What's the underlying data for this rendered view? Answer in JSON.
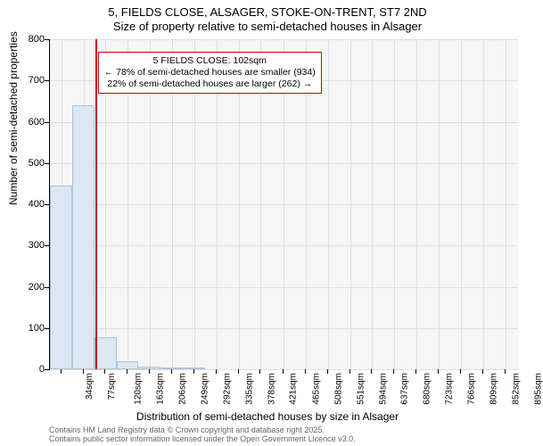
{
  "title": {
    "line1": "5, FIELDS CLOSE, ALSAGER, STOKE-ON-TRENT, ST7 2ND",
    "line2": "Size of property relative to semi-detached houses in Alsager"
  },
  "chart": {
    "type": "histogram",
    "background_color": "#f6f6f6",
    "grid_color": "#dddddd",
    "bar_fill": "#dbe7f3",
    "bar_border": "#b0c4d8",
    "marker_color": "#cc0000",
    "x_min": 12,
    "x_max": 920,
    "y_min": 0,
    "y_max": 800,
    "y_ticks": [
      0,
      100,
      200,
      300,
      400,
      500,
      600,
      700,
      800
    ],
    "x_tick_labels": [
      "34sqm",
      "77sqm",
      "120sqm",
      "163sqm",
      "206sqm",
      "249sqm",
      "292sqm",
      "335sqm",
      "378sqm",
      "421sqm",
      "465sqm",
      "508sqm",
      "551sqm",
      "594sqm",
      "637sqm",
      "680sqm",
      "723sqm",
      "766sqm",
      "809sqm",
      "852sqm",
      "895sqm"
    ],
    "x_tick_values": [
      34,
      77,
      120,
      163,
      206,
      249,
      292,
      335,
      378,
      421,
      465,
      508,
      551,
      594,
      637,
      680,
      723,
      766,
      809,
      852,
      895
    ],
    "bars": [
      {
        "x_left": 12,
        "x_right": 55,
        "value": 445
      },
      {
        "x_left": 55,
        "x_right": 98,
        "value": 640
      },
      {
        "x_left": 98,
        "x_right": 141,
        "value": 77
      },
      {
        "x_left": 141,
        "x_right": 184,
        "value": 20
      },
      {
        "x_left": 184,
        "x_right": 227,
        "value": 6
      },
      {
        "x_left": 227,
        "x_right": 270,
        "value": 5
      },
      {
        "x_left": 270,
        "x_right": 313,
        "value": 4
      }
    ],
    "marker_x": 102,
    "annotation": {
      "line1": "5 FIELDS CLOSE: 102sqm",
      "line2": "← 78% of semi-detached houses are smaller (934)",
      "line3": "22% of semi-detached houses are larger (262) →",
      "x_left": 105
    },
    "y_label": "Number of semi-detached properties",
    "x_label": "Distribution of semi-detached houses by size in Alsager"
  },
  "footer": {
    "line1": "Contains HM Land Registry data © Crown copyright and database right 2025.",
    "line2": "Contains public sector information licensed under the Open Government Licence v3.0."
  },
  "fonts": {
    "title_size": 13,
    "axis_label_size": 12,
    "tick_size": 11,
    "annotation_size": 10.5,
    "footer_size": 9
  }
}
